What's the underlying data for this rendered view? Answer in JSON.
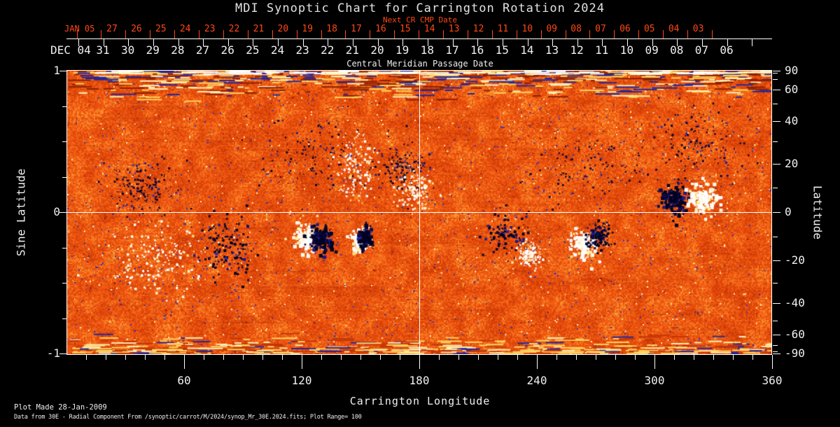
{
  "title": "MDI Synoptic Chart for Carrington Rotation 2024",
  "colors": {
    "background": "#000000",
    "axis": "#ffffff",
    "secondary_axis": "#ff4814",
    "title_text": "#e2e2e2",
    "reference_line": "#ffffff"
  },
  "top_axes": {
    "next_cr_label": "Next CR CMP Date",
    "caption": "Central Meridian Passage Date",
    "jan": {
      "anchor": "JAN 05",
      "days": [
        "27",
        "26",
        "25",
        "24",
        "23",
        "22",
        "21",
        "20",
        "19",
        "18",
        "17",
        "16",
        "15",
        "14",
        "13",
        "12",
        "11",
        "10",
        "09",
        "08",
        "07",
        "06",
        "05",
        "04",
        "03"
      ]
    },
    "dec": {
      "anchor": "DEC 04",
      "days": [
        "31",
        "30",
        "29",
        "28",
        "27",
        "26",
        "25",
        "24",
        "23",
        "22",
        "21",
        "20",
        "19",
        "18",
        "17",
        "16",
        "15",
        "14",
        "13",
        "12",
        "11",
        "10",
        "09",
        "08",
        "07",
        "06"
      ]
    }
  },
  "left_axis": {
    "label": "Sine Latitude",
    "tick_labels": [
      "1",
      "0",
      "-1"
    ],
    "tick_values": [
      1,
      0,
      -1
    ],
    "minor_tick_values": [
      0.75,
      0.5,
      0.25,
      -0.25,
      -0.5,
      -0.75
    ]
  },
  "right_axis": {
    "label": "Latitude",
    "tick_labels": [
      "90",
      "60",
      "40",
      "20",
      "0",
      "-20",
      "-40",
      "-60",
      "-90"
    ],
    "tick_values": [
      90,
      60,
      40,
      20,
      0,
      -20,
      -40,
      -60,
      -90
    ],
    "minor_tick_values": [
      80,
      70,
      50,
      30,
      10,
      -10,
      -30,
      -50,
      -70,
      -80
    ]
  },
  "bottom_axis": {
    "label": "Carrington Longitude",
    "tick_labels": [
      "60",
      "120",
      "180",
      "240",
      "300",
      "360"
    ],
    "tick_values": [
      60,
      120,
      180,
      240,
      300,
      360
    ],
    "minor_step_deg": 10
  },
  "footer": {
    "made": "Plot Made 28-Jan-2009",
    "source": "Data from 30E - Radial Component From /synoptic/carrot/M/2024/synop_Mr_30E.2024.fits; Plot Range=  100"
  },
  "chart_data": {
    "type": "heatmap",
    "title": "MDI Synoptic Chart for Carrington Rotation 2024",
    "xlabel": "Carrington Longitude",
    "ylabel_left": "Sine Latitude",
    "ylabel_right": "Latitude",
    "xlim": [
      0,
      360
    ],
    "ylim_sine_latitude": [
      -1,
      1
    ],
    "plot_range_gauss": 100,
    "quantity": "Radial magnetic field component",
    "reference_lines": {
      "longitude": 180,
      "sine_latitude": 0
    },
    "colormap_stops": [
      [
        0,
        "#9e2400"
      ],
      [
        0.3,
        "#d64008"
      ],
      [
        0.55,
        "#ee5510"
      ],
      [
        0.75,
        "#f97a22"
      ],
      [
        0.88,
        "#f6a93c"
      ],
      [
        1,
        "#ffd86a"
      ]
    ],
    "negative_polarity_colors": [
      "#000022",
      "#0b0b48",
      "#1b1b84",
      "#2d2db4"
    ],
    "positive_polarity_colors": [
      "#ffffff",
      "#fff8dc",
      "#ffeda6",
      "#ffdc72"
    ],
    "speck_colors": [
      "#bd3004",
      "#f9ae3e",
      "#ffe9a8",
      "#2c2cae",
      "#7c1a02"
    ],
    "polar_band_colors": [
      "#ffefb4",
      "#ffd35e",
      "#262696",
      "#8e2002"
    ],
    "polar_noise_bands": {
      "north": "horizontal bright/blue noisy streaks above sine latitude ~0.93",
      "south": "horizontal bright yellow noisy streaks below sine latitude ~-0.9"
    },
    "active_regions": [
      {
        "lon": 38,
        "sine_lat": 0.18,
        "width_deg": 26,
        "height_sine_lat": 0.3,
        "polarity": "negative",
        "intensity": 0.65,
        "morphology": "scatter"
      },
      {
        "lon": 46,
        "sine_lat": -0.33,
        "width_deg": 42,
        "height_sine_lat": 0.42,
        "polarity": "positive",
        "intensity": 0.9,
        "morphology": "network"
      },
      {
        "lon": 81,
        "sine_lat": -0.25,
        "width_deg": 24,
        "height_sine_lat": 0.38,
        "polarity": "negative",
        "intensity": 0.9,
        "morphology": "cluster"
      },
      {
        "lon": 127,
        "sine_lat": 0.42,
        "width_deg": 48,
        "height_sine_lat": 0.42,
        "polarity": "negative",
        "intensity": 0.5,
        "morphology": "scatter"
      },
      {
        "lon": 148,
        "sine_lat": 0.34,
        "width_deg": 15,
        "height_sine_lat": 0.38,
        "polarity": "positive",
        "intensity": 0.7,
        "morphology": "network"
      },
      {
        "lon": 122,
        "sine_lat": -0.17,
        "width_deg": 12,
        "height_sine_lat": 0.15,
        "polarity": "positive",
        "intensity": 1.0,
        "morphology": "compact"
      },
      {
        "lon": 129,
        "sine_lat": -0.185,
        "width_deg": 10,
        "height_sine_lat": 0.14,
        "polarity": "negative",
        "intensity": 1.0,
        "morphology": "compact"
      },
      {
        "lon": 149,
        "sine_lat": -0.185,
        "width_deg": 7,
        "height_sine_lat": 0.12,
        "polarity": "positive",
        "intensity": 0.75,
        "morphology": "compact"
      },
      {
        "lon": 152,
        "sine_lat": -0.175,
        "width_deg": 7,
        "height_sine_lat": 0.12,
        "polarity": "negative",
        "intensity": 0.75,
        "morphology": "compact"
      },
      {
        "lon": 171,
        "sine_lat": 0.3,
        "width_deg": 20,
        "height_sine_lat": 0.26,
        "polarity": "negative",
        "intensity": 0.55,
        "morphology": "scatter"
      },
      {
        "lon": 177,
        "sine_lat": 0.17,
        "width_deg": 16,
        "height_sine_lat": 0.22,
        "polarity": "positive",
        "intensity": 0.6,
        "morphology": "network"
      },
      {
        "lon": 225,
        "sine_lat": -0.16,
        "width_deg": 18,
        "height_sine_lat": 0.25,
        "polarity": "negative",
        "intensity": 0.6,
        "morphology": "cluster"
      },
      {
        "lon": 236,
        "sine_lat": -0.3,
        "width_deg": 10,
        "height_sine_lat": 0.14,
        "polarity": "positive",
        "intensity": 0.65,
        "morphology": "network"
      },
      {
        "lon": 264,
        "sine_lat": -0.22,
        "width_deg": 12,
        "height_sine_lat": 0.17,
        "polarity": "positive",
        "intensity": 0.95,
        "morphology": "compact"
      },
      {
        "lon": 271,
        "sine_lat": -0.17,
        "width_deg": 9,
        "height_sine_lat": 0.16,
        "polarity": "negative",
        "intensity": 0.8,
        "morphology": "cluster"
      },
      {
        "lon": 262,
        "sine_lat": 0.3,
        "width_deg": 40,
        "height_sine_lat": 0.38,
        "polarity": "negative",
        "intensity": 0.45,
        "morphology": "scatter"
      },
      {
        "lon": 316,
        "sine_lat": 0.48,
        "width_deg": 48,
        "height_sine_lat": 0.42,
        "polarity": "negative",
        "intensity": 0.6,
        "morphology": "scatter"
      },
      {
        "lon": 309,
        "sine_lat": 0.1,
        "width_deg": 12,
        "height_sine_lat": 0.18,
        "polarity": "negative",
        "intensity": 1.0,
        "morphology": "compact"
      },
      {
        "lon": 324,
        "sine_lat": 0.1,
        "width_deg": 13,
        "height_sine_lat": 0.18,
        "polarity": "positive",
        "intensity": 1.0,
        "morphology": "compact"
      }
    ]
  }
}
